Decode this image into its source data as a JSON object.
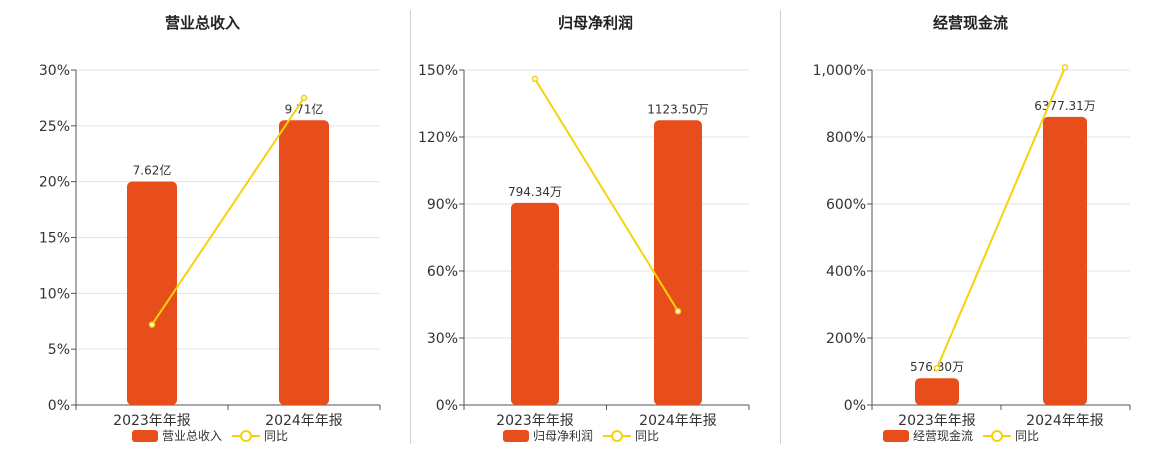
{
  "colors": {
    "bar": "#e84e1b",
    "line": "#f5d20c"
  },
  "chart_data": [
    {
      "type": "bar",
      "title": "营业总收入",
      "categories": [
        "2023年年报",
        "2024年年报"
      ],
      "series": [
        {
          "name": "营业总收入",
          "type": "bar",
          "values": [
            20,
            25.5
          ],
          "labels": [
            "7.62亿",
            "9.71亿"
          ]
        },
        {
          "name": "同比",
          "type": "line",
          "values": [
            7.2,
            27.5
          ]
        }
      ],
      "ylim": [
        0,
        30
      ],
      "yticks": [
        "0%",
        "5%",
        "10%",
        "15%",
        "20%",
        "25%",
        "30%"
      ],
      "grid": true,
      "legend": "bottom"
    },
    {
      "type": "bar",
      "title": "归母净利润",
      "categories": [
        "2023年年报",
        "2024年年报"
      ],
      "series": [
        {
          "name": "归母净利润",
          "type": "bar",
          "values": [
            90.5,
            127.5
          ],
          "labels": [
            "794.34万",
            "1123.50万"
          ]
        },
        {
          "name": "同比",
          "type": "line",
          "values": [
            146,
            42
          ]
        }
      ],
      "ylim": [
        0,
        150
      ],
      "yticks": [
        "0%",
        "30%",
        "60%",
        "90%",
        "120%",
        "150%"
      ],
      "grid": true,
      "legend": "bottom"
    },
    {
      "type": "bar",
      "title": "经营现金流",
      "categories": [
        "2023年年报",
        "2024年年报"
      ],
      "series": [
        {
          "name": "经营现金流",
          "type": "bar",
          "values": [
            80,
            860
          ],
          "labels": [
            "576.30万",
            "6377.31万"
          ]
        },
        {
          "name": "同比",
          "type": "line",
          "values": [
            110,
            1008
          ]
        }
      ],
      "ylim": [
        0,
        1000
      ],
      "yticks": [
        "0%",
        "200%",
        "400%",
        "600%",
        "800%",
        "1,000%"
      ],
      "grid": true,
      "legend": "bottom"
    }
  ]
}
